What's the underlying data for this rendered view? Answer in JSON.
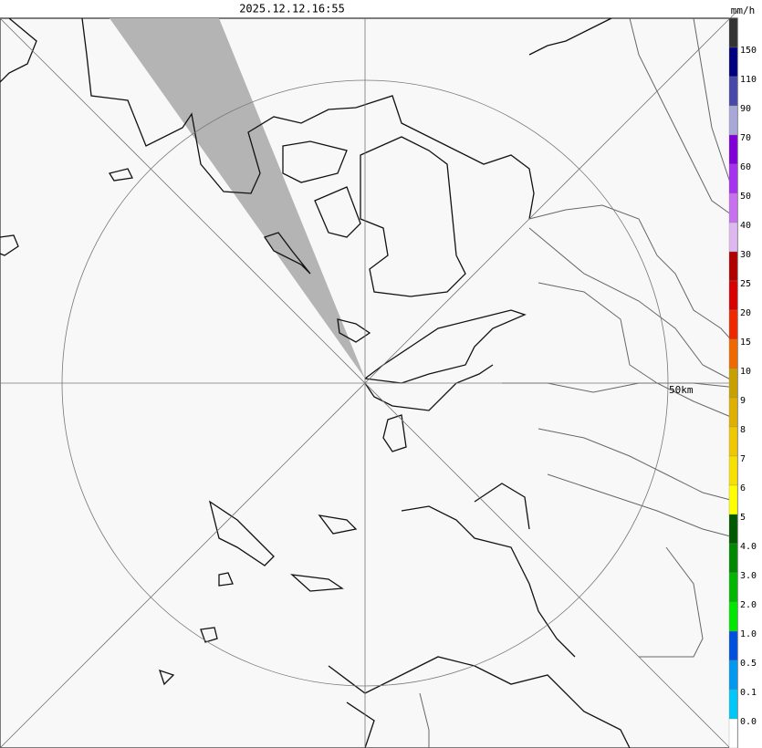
{
  "timestamp": "2025.12.12.16:55",
  "unit": "mm/h",
  "range_label": "50km",
  "legend": {
    "labels": [
      "150",
      "110",
      "90",
      "70",
      "60",
      "50",
      "40",
      "30",
      "25",
      "20",
      "15",
      "10",
      "9",
      "8",
      "7",
      "6",
      "5",
      "4.0",
      "3.0",
      "2.0",
      "1.0",
      "0.5",
      "0.1",
      "0.0"
    ],
    "colors": [
      "#333333",
      "#000080",
      "#4848a8",
      "#a8a8d8",
      "#8000d8",
      "#a830f0",
      "#c870f0",
      "#e0b8f0",
      "#b00000",
      "#d80000",
      "#f02800",
      "#f06800",
      "#c8a000",
      "#e0b000",
      "#f0c800",
      "#f8e000",
      "#ffff00",
      "#005800",
      "#008800",
      "#00b800",
      "#00e800",
      "#0050e0",
      "#0098f0",
      "#00c8f8",
      "#ffffff"
    ]
  }
}
